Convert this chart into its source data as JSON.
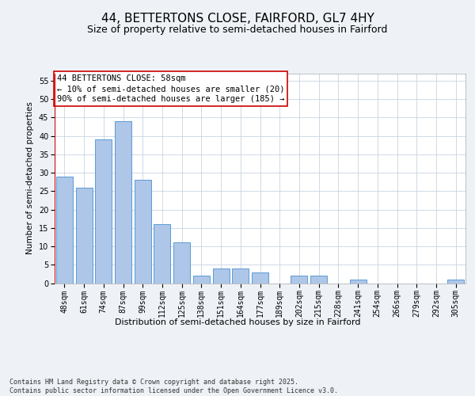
{
  "title": "44, BETTERTONS CLOSE, FAIRFORD, GL7 4HY",
  "subtitle": "Size of property relative to semi-detached houses in Fairford",
  "xlabel": "Distribution of semi-detached houses by size in Fairford",
  "ylabel": "Number of semi-detached properties",
  "categories": [
    "48sqm",
    "61sqm",
    "74sqm",
    "87sqm",
    "99sqm",
    "112sqm",
    "125sqm",
    "138sqm",
    "151sqm",
    "164sqm",
    "177sqm",
    "189sqm",
    "202sqm",
    "215sqm",
    "228sqm",
    "241sqm",
    "254sqm",
    "266sqm",
    "279sqm",
    "292sqm",
    "305sqm"
  ],
  "values": [
    29,
    26,
    39,
    44,
    28,
    16,
    11,
    2,
    4,
    4,
    3,
    0,
    2,
    2,
    0,
    1,
    0,
    0,
    0,
    0,
    1
  ],
  "bar_color": "#aec6e8",
  "bar_edge_color": "#5b9bd5",
  "vline_color": "#cc0000",
  "annotation_text": "44 BETTERTONS CLOSE: 58sqm\n← 10% of semi-detached houses are smaller (20)\n90% of semi-detached houses are larger (185) →",
  "annotation_box_color": "#ffffff",
  "annotation_box_edge": "#cc0000",
  "ylim": [
    0,
    57
  ],
  "yticks": [
    0,
    5,
    10,
    15,
    20,
    25,
    30,
    35,
    40,
    45,
    50,
    55
  ],
  "background_color": "#eef2f7",
  "plot_bg_color": "#ffffff",
  "grid_color": "#c8d4e3",
  "footer_text": "Contains HM Land Registry data © Crown copyright and database right 2025.\nContains public sector information licensed under the Open Government Licence v3.0.",
  "title_fontsize": 11,
  "subtitle_fontsize": 9,
  "xlabel_fontsize": 8,
  "ylabel_fontsize": 7.5,
  "tick_fontsize": 7,
  "annotation_fontsize": 7.5,
  "footer_fontsize": 6
}
